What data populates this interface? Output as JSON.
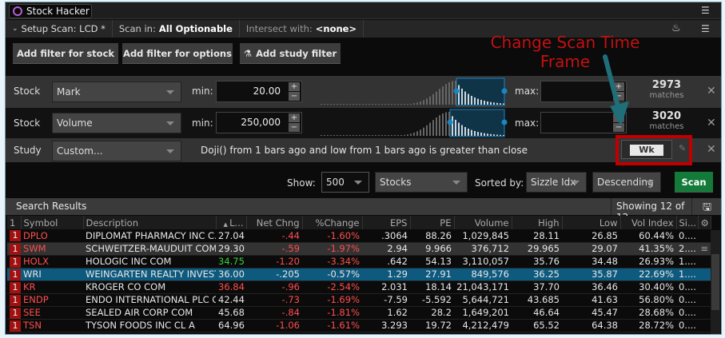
{
  "app": {
    "title": "Stock Hacker"
  },
  "setup": {
    "setup_scan": "Setup Scan: LCD *",
    "scan_in_label": "Scan in:",
    "scan_in_value": "All Optionable",
    "intersect_label": "Intersect with:",
    "intersect_value": "<none>"
  },
  "buttons": {
    "add_stock": "Add filter for stock",
    "add_options": "Add filter for options",
    "add_study": "Add study filter",
    "scan": "Scan"
  },
  "filters": [
    {
      "type": "Stock",
      "field": "Mark",
      "min_label": "min:",
      "min": "20.00",
      "max_label": "max:",
      "max": "",
      "matches": "2973",
      "matches_label": "matches"
    },
    {
      "type": "Stock",
      "field": "Volume",
      "min_label": "min:",
      "min": "250,000",
      "max_label": "max:",
      "max": "",
      "matches": "3020",
      "matches_label": "matches"
    }
  ],
  "study": {
    "type": "Study",
    "field": "Custom...",
    "condition": "Doji() from 1 bars ago and low from 1 bars ago is greater than close",
    "timeframe": "Wk"
  },
  "annotation": {
    "text": "Change Scan Time Frame",
    "color": "#c41010",
    "arrow_color": "#1f6e78"
  },
  "options": {
    "show_label": "Show:",
    "show_value": "500",
    "universe": "Stocks",
    "sorted_label": "Sorted by:",
    "sorted_value": "Sizzle Idx",
    "order": "Descending"
  },
  "results": {
    "title": "Search Results",
    "showing": "Showing 12 of 12",
    "columns": [
      "1",
      "Symbol",
      "Description",
      "L...",
      "Net Chng",
      "%Change",
      "EPS",
      "PE",
      "Volume",
      "High",
      "Low",
      "Vol Index",
      "Si..."
    ],
    "rows": [
      {
        "rank": "1",
        "symbol": "DPLO",
        "desc": "DIPLOMAT PHARMACY INC C...",
        "last": "27.04",
        "chg": "-.44",
        "pct": "-1.60%",
        "eps": ".3064",
        "pe": "88.26",
        "vol": "1,029,845",
        "high": "28.11",
        "low": "26.85",
        "vi": "60.44%",
        "si": "0...."
      },
      {
        "rank": "1",
        "symbol": "SWM",
        "desc": "SCHWEITZER-MAUDUIT COM",
        "last": "29.30",
        "chg": "-.59",
        "pct": "-1.97%",
        "eps": "2.94",
        "pe": "9.966",
        "vol": "376,712",
        "high": "29.965",
        "low": "29.07",
        "vi": "41.35%",
        "si": "2...."
      },
      {
        "rank": "1",
        "symbol": "HOLX",
        "desc": "HOLOGIC INC COM",
        "last": "34.75",
        "chg": "-1.20",
        "pct": "-3.34%",
        "eps": ".642",
        "pe": "54.13",
        "vol": "3,110,057",
        "high": "35.76",
        "low": "34.48",
        "vi": "26.93%",
        "si": "1...."
      },
      {
        "rank": "1",
        "symbol": "WRI",
        "desc": "WEINGARTEN REALTY INVEST...",
        "last": "36.00",
        "chg": "-.205",
        "pct": "-0.57%",
        "eps": "1.29",
        "pe": "27.91",
        "vol": "849,576",
        "high": "36.25",
        "low": "35.87",
        "vi": "22.69%",
        "si": "1...."
      },
      {
        "rank": "1",
        "symbol": "KR",
        "desc": "KROGER CO COM",
        "last": "36.84",
        "chg": "-.96",
        "pct": "-2.54%",
        "eps": "2.031",
        "pe": "18.14",
        "vol": "21,043,171",
        "high": "37.70",
        "low": "36.46",
        "vi": "30.40%",
        "si": "0...."
      },
      {
        "rank": "1",
        "symbol": "ENDP",
        "desc": "ENDO INTERNATIONAL PLC C...",
        "last": "42.44",
        "chg": "-.73",
        "pct": "-1.69%",
        "eps": "-7.59",
        "pe": "-5.592",
        "vol": "5,644,721",
        "high": "43.685",
        "low": "41.63",
        "vi": "56.80%",
        "si": "0...."
      },
      {
        "rank": "1",
        "symbol": "SEE",
        "desc": "SEALED AIR CORP COM",
        "last": "45.68",
        "chg": "-.84",
        "pct": "-1.81%",
        "eps": "1.62",
        "pe": "28.2",
        "vol": "1,649,201",
        "high": "46.64",
        "low": "45.47",
        "vi": "28.68%",
        "si": "0...."
      },
      {
        "rank": "1",
        "symbol": "TSN",
        "desc": "TYSON FOODS INC CL A",
        "last": "64.96",
        "chg": "-1.06",
        "pct": "-1.61%",
        "eps": "3.293",
        "pe": "19.72",
        "vol": "4,212,479",
        "high": "65.52",
        "low": "64.38",
        "vi": "28.72%",
        "si": "0...."
      }
    ]
  }
}
